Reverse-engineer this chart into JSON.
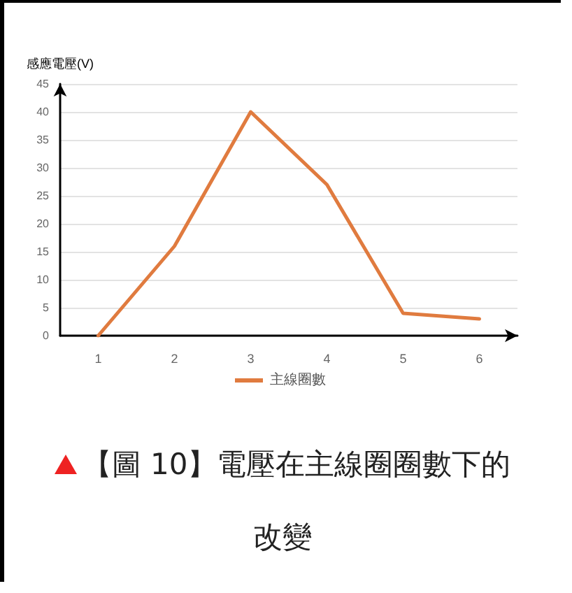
{
  "chart_data": {
    "type": "line",
    "ylabel": "感應電壓(V)",
    "categories": [
      "1",
      "2",
      "3",
      "4",
      "5",
      "6"
    ],
    "series": [
      {
        "name": "主線圈數",
        "color": "#e07b3f",
        "values": [
          0,
          16,
          40,
          27,
          4,
          3
        ]
      }
    ],
    "ylim": [
      0,
      45
    ],
    "yticks": [
      0,
      5,
      10,
      15,
      20,
      25,
      30,
      35,
      40,
      45
    ],
    "grid": "y",
    "legend": "bottom",
    "marker": "none",
    "line_style": "solid",
    "annotations": [
      "【圖 10】電壓在主線圈圈數下的改變"
    ]
  }
}
